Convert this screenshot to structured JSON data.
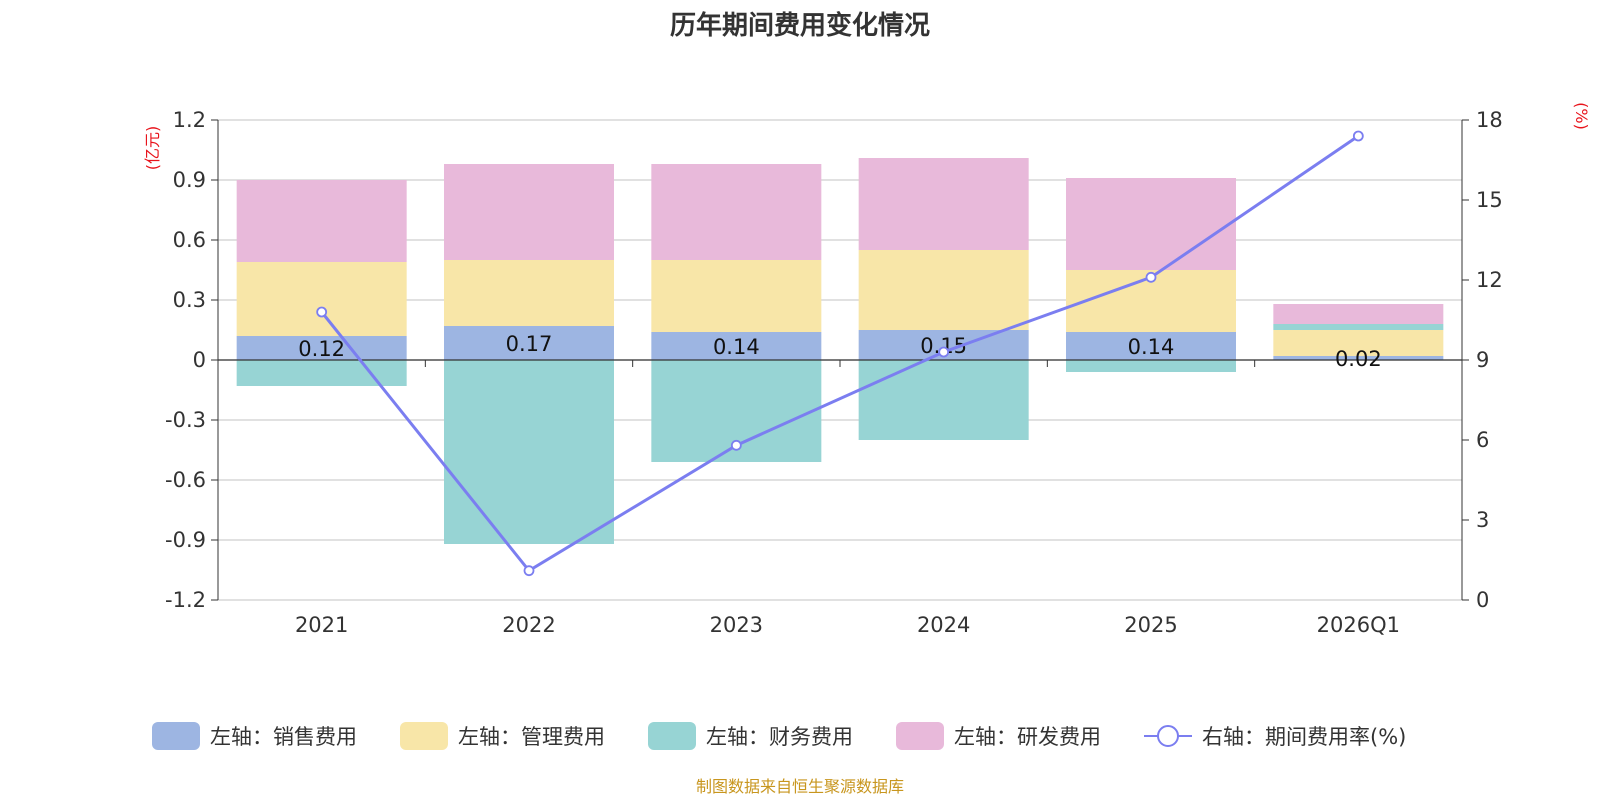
{
  "chart_data": {
    "type": "bar",
    "title": "历年期间费用变化情况",
    "categories": [
      "2021",
      "2022",
      "2023",
      "2024",
      "2025",
      "2026Q1"
    ],
    "left_axis": {
      "unit": "(亿元)",
      "ylim": [
        -1.2,
        1.2
      ],
      "ticks": [
        "1.2",
        "0.9",
        "0.6",
        "0.3",
        "0",
        "-0.3",
        "-0.6",
        "-0.9",
        "-1.2"
      ]
    },
    "right_axis": {
      "unit": "(%)",
      "ylim": [
        0,
        18
      ],
      "ticks": [
        "18",
        "15",
        "12",
        "9",
        "6",
        "3",
        "0"
      ]
    },
    "series": [
      {
        "name": "左轴：销售费用",
        "color": "#9db5e2",
        "values": [
          0.12,
          0.17,
          0.14,
          0.15,
          0.14,
          0.02
        ],
        "labels": [
          "0.12",
          "0.17",
          "0.14",
          "0.15",
          "0.14",
          "0.02"
        ]
      },
      {
        "name": "左轴：管理费用",
        "color": "#f8e6a8",
        "values": [
          0.37,
          0.33,
          0.36,
          0.4,
          0.31,
          0.13
        ]
      },
      {
        "name": "左轴：财务费用",
        "color": "#97d4d4",
        "values": [
          -0.13,
          -0.92,
          -0.51,
          -0.4,
          -0.06,
          0.03
        ]
      },
      {
        "name": "左轴：研发费用",
        "color": "#e8b9da",
        "values": [
          0.41,
          0.48,
          0.48,
          0.46,
          0.46,
          0.1
        ]
      }
    ],
    "line": {
      "name": "右轴：期间费用率(%)",
      "color": "#7b7ef0",
      "axis": "right",
      "values": [
        10.8,
        1.1,
        5.8,
        9.3,
        12.1,
        17.4
      ]
    },
    "grid": true,
    "legend": "bottom-center"
  },
  "source": "制图数据来自恒生聚源数据库"
}
